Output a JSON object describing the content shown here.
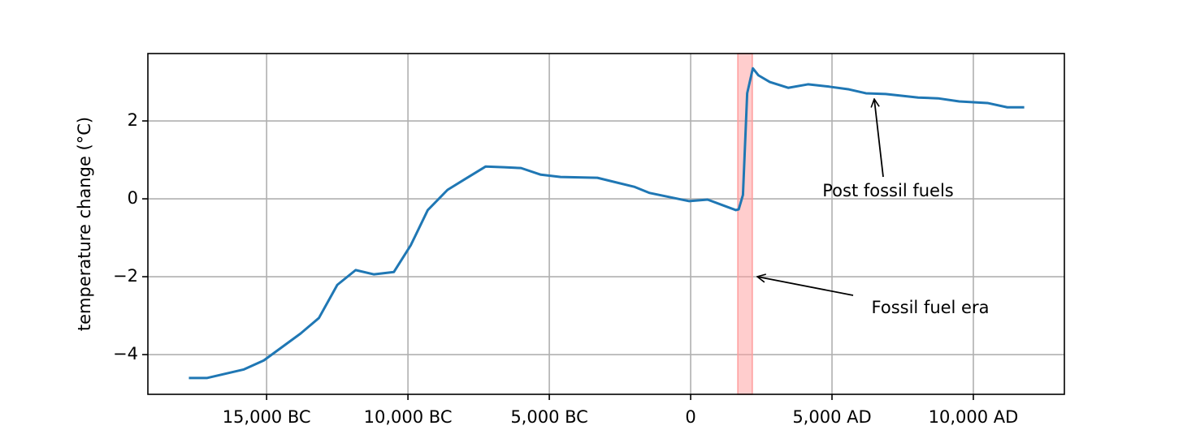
{
  "chart_data": {
    "type": "line",
    "y_label": "temperature change (°C)",
    "xlim": [
      -19200,
      13220
    ],
    "ylim": [
      -5.02,
      3.73
    ],
    "xticks": [
      {
        "value": -15000,
        "label": "15,000 BC"
      },
      {
        "value": -10000,
        "label": "10,000 BC"
      },
      {
        "value": -5000,
        "label": "5,000 BC"
      },
      0,
      {
        "value": 5000,
        "label": "5,000 AD"
      },
      {
        "value": 10000,
        "label": "10,000 AD"
      }
    ],
    "yticks": [
      {
        "value": -4,
        "label": "−4"
      },
      {
        "value": -2,
        "label": "−2"
      },
      0,
      2
    ],
    "grid": true,
    "highlight_span": [
      1670,
      2180
    ],
    "highlight_color": "#ff9c9c",
    "annotations": [
      "Post fossil fuels",
      "Fossil fuel era"
    ],
    "x": [
      -17750,
      -17100,
      -15800,
      -15100,
      -13800,
      -13150,
      -12500,
      -11850,
      -11200,
      -10500,
      -9900,
      -9300,
      -8600,
      -7950,
      -7250,
      -6600,
      -6000,
      -5300,
      -4600,
      -3300,
      -2000,
      -1450,
      -50,
      600,
      1600,
      1700,
      1850,
      2000,
      2200,
      2400,
      2800,
      3450,
      4150,
      4900,
      5600,
      6200,
      6900,
      8050,
      8750,
      9500,
      10500,
      11200,
      11800
    ],
    "series": [
      {
        "name": "temperature",
        "color": "#1f77b4",
        "values": [
          -4.6,
          -4.6,
          -4.38,
          -4.15,
          -3.46,
          -3.06,
          -2.21,
          -1.83,
          -1.94,
          -1.88,
          -1.19,
          -0.29,
          0.23,
          0.52,
          0.83,
          0.81,
          0.79,
          0.62,
          0.56,
          0.54,
          0.31,
          0.15,
          -0.06,
          -0.02,
          -0.29,
          -0.27,
          0.1,
          2.71,
          3.35,
          3.17,
          3.0,
          2.85,
          2.94,
          2.88,
          2.81,
          2.71,
          2.69,
          2.6,
          2.58,
          2.5,
          2.46,
          2.35,
          2.35
        ]
      }
    ]
  }
}
